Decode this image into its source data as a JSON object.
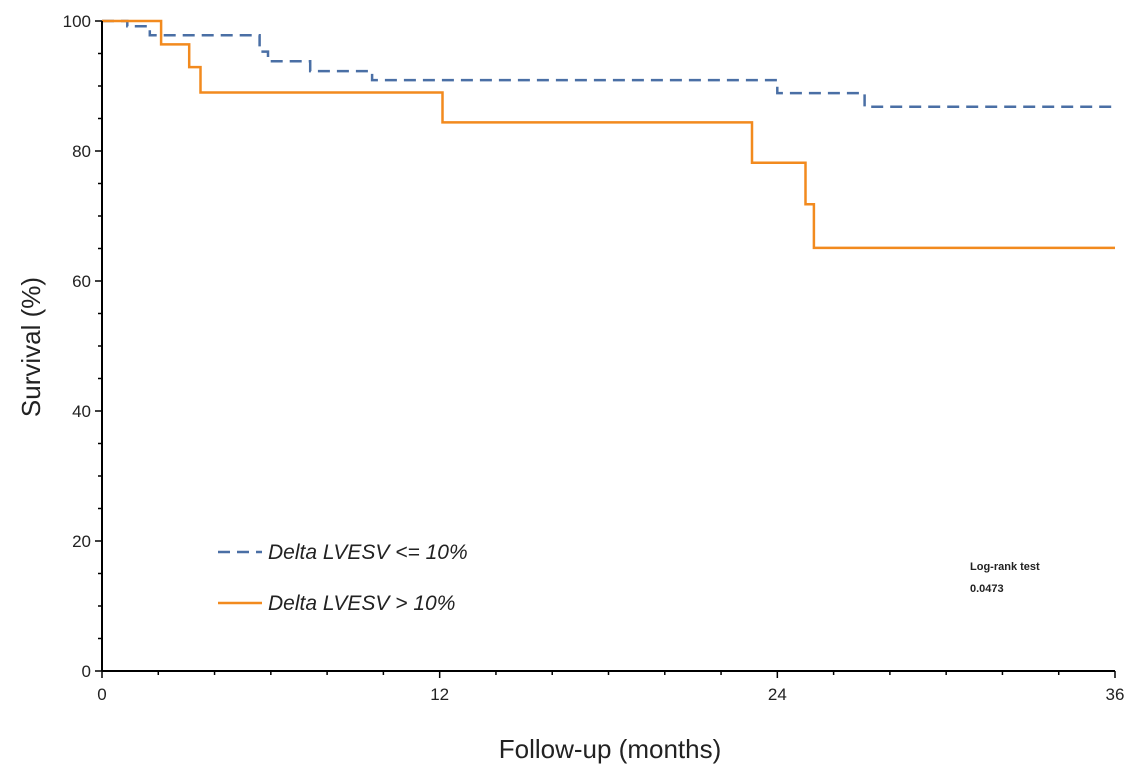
{
  "chart_data": {
    "type": "line",
    "subtype": "kaplan-meier step plot",
    "title": "",
    "xlabel": "Follow-up (months)",
    "ylabel": "Survival (%)",
    "xlim": [
      0,
      36
    ],
    "ylim": [
      0,
      100
    ],
    "x_ticks": [
      0,
      12,
      24,
      36
    ],
    "x_tick_labels": [
      "0",
      "12",
      "24",
      "36"
    ],
    "y_ticks": [
      0,
      20,
      40,
      60,
      80,
      100
    ],
    "y_tick_labels": [
      "0",
      "20",
      "40",
      "60",
      "80",
      "100"
    ],
    "y_minor_tick_step": 5,
    "x_minor_tick_step": 2,
    "grid": false,
    "legend_position": "bottom-left",
    "series": [
      {
        "name": "Delta LVESV <= 10%",
        "color": "#4a6fa5",
        "line_style": "dashed",
        "points": [
          [
            0,
            100
          ],
          [
            0.9,
            100
          ],
          [
            0.9,
            99.2
          ],
          [
            1.7,
            99.2
          ],
          [
            1.7,
            97.8
          ],
          [
            5.6,
            97.8
          ],
          [
            5.6,
            95.3
          ],
          [
            5.9,
            95.3
          ],
          [
            5.9,
            93.8
          ],
          [
            7.4,
            93.8
          ],
          [
            7.4,
            92.3
          ],
          [
            9.6,
            92.3
          ],
          [
            9.6,
            90.9
          ],
          [
            24.0,
            90.9
          ],
          [
            24.0,
            88.9
          ],
          [
            27.1,
            88.9
          ],
          [
            27.1,
            86.8
          ],
          [
            36,
            86.8
          ]
        ]
      },
      {
        "name": "Delta LVESV > 10%",
        "color": "#f28a1e",
        "line_style": "solid",
        "points": [
          [
            0,
            100
          ],
          [
            2.1,
            100
          ],
          [
            2.1,
            96.4
          ],
          [
            3.1,
            96.4
          ],
          [
            3.1,
            92.9
          ],
          [
            3.5,
            92.9
          ],
          [
            3.5,
            89.0
          ],
          [
            12.1,
            89.0
          ],
          [
            12.1,
            84.4
          ],
          [
            23.1,
            84.4
          ],
          [
            23.1,
            78.2
          ],
          [
            25.0,
            78.2
          ],
          [
            25.0,
            71.8
          ],
          [
            25.3,
            71.8
          ],
          [
            25.3,
            65.1
          ],
          [
            36,
            65.1
          ]
        ]
      }
    ],
    "annotations": [
      "Log-rank test",
      "0.0473"
    ]
  }
}
